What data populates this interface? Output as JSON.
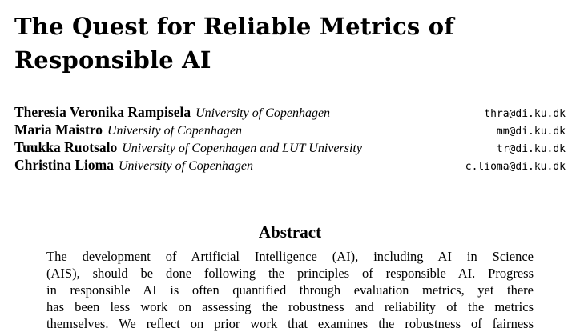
{
  "paper": {
    "title_lines": [
      "The Quest for Reliable Metrics of",
      "Responsible AI"
    ],
    "authors": [
      {
        "name": "Theresia Veronika Rampisela",
        "affiliation": "University of Copenhagen",
        "email": "thra@di.ku.dk"
      },
      {
        "name": "Maria Maistro",
        "affiliation": "University of Copenhagen",
        "email": "mm@di.ku.dk"
      },
      {
        "name": "Tuukka Ruotsalo",
        "affiliation": "University of Copenhagen and LUT University",
        "email": "tr@di.ku.dk"
      },
      {
        "name": "Christina Lioma",
        "affiliation": "University of Copenhagen",
        "email": "c.lioma@di.ku.dk"
      }
    ],
    "abstract": {
      "heading": "Abstract",
      "lines": [
        "The development of Artificial Intelligence (AI), including AI in Science",
        "(AIS), should be done following the principles of responsible AI. Progress",
        "in responsible AI is often quantified through evaluation metrics, yet there",
        "has been less work on assessing the robustness and reliability of the metrics",
        "themselves. We reflect on prior work that examines the robustness of fairness"
      ]
    }
  }
}
